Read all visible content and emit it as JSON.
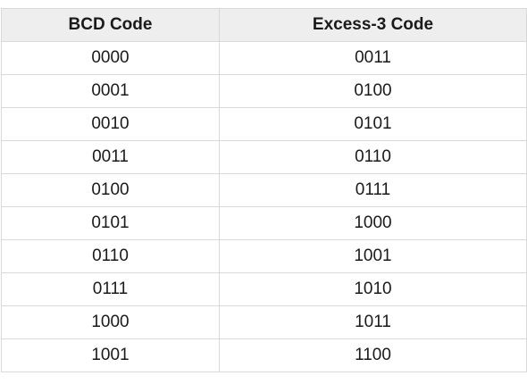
{
  "table": {
    "headers": [
      "BCD Code",
      "Excess-3 Code"
    ],
    "rows": [
      [
        "0000",
        "0011"
      ],
      [
        "0001",
        "0100"
      ],
      [
        "0010",
        "0101"
      ],
      [
        "0011",
        "0110"
      ],
      [
        "0100",
        "0111"
      ],
      [
        "0101",
        "1000"
      ],
      [
        "0110",
        "1001"
      ],
      [
        "0111",
        "1010"
      ],
      [
        "1000",
        "1011"
      ],
      [
        "1001",
        "1100"
      ]
    ]
  }
}
